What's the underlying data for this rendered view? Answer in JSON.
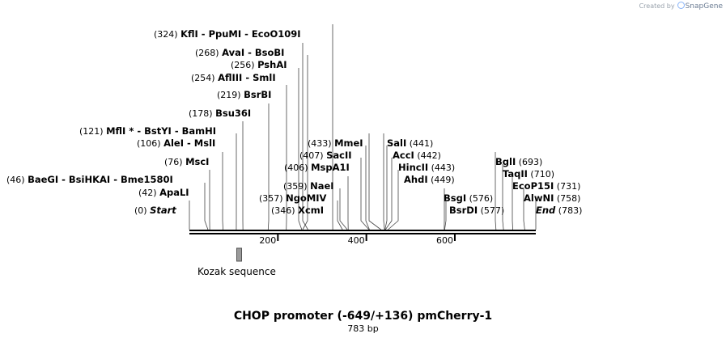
{
  "credit": {
    "prefix": "Created by",
    "brand": "SnapGene"
  },
  "map": {
    "title": "CHOP promoter (-649/+136) pmCherry-1",
    "length_label": "783 bp",
    "length_bp": 783,
    "ticks": [
      {
        "pos": 200,
        "label": "200"
      },
      {
        "pos": 400,
        "label": "400"
      },
      {
        "pos": 600,
        "label": "600"
      }
    ],
    "features": [
      {
        "name": "Kozak sequence",
        "start": 107,
        "end": 118,
        "color": "#9a9a9a"
      }
    ],
    "sites": [
      {
        "pos": "(324)",
        "bp": 324,
        "names": [
          "KflI",
          "PpuMI",
          "EcoO109I"
        ],
        "side": "left"
      },
      {
        "pos": "(268)",
        "bp": 268,
        "names": [
          "AvaI",
          "BsoBI"
        ],
        "side": "left"
      },
      {
        "pos": "(256)",
        "bp": 256,
        "names": [
          "PshAI"
        ],
        "side": "left"
      },
      {
        "pos": "(254)",
        "bp": 254,
        "names": [
          "AflIII",
          "SmlI"
        ],
        "side": "left"
      },
      {
        "pos": "(219)",
        "bp": 219,
        "names": [
          "BsrBI"
        ],
        "side": "left"
      },
      {
        "pos": "(178)",
        "bp": 178,
        "names": [
          "Bsu36I"
        ],
        "side": "left"
      },
      {
        "pos": "(121)",
        "bp": 121,
        "names": [
          "MflI *",
          "BstYI",
          "BamHI"
        ],
        "side": "left"
      },
      {
        "pos": "(106)",
        "bp": 106,
        "names": [
          "AleI",
          "MslI"
        ],
        "side": "left"
      },
      {
        "pos": "(76)",
        "bp": 76,
        "names": [
          "MscI"
        ],
        "side": "left"
      },
      {
        "pos": "(46)",
        "bp": 46,
        "names": [
          "BaeGI",
          "BsiHKAI",
          "Bme1580I"
        ],
        "side": "left"
      },
      {
        "pos": "(42)",
        "bp": 42,
        "names": [
          "ApaLI"
        ],
        "side": "left"
      },
      {
        "pos": "(0)",
        "bp": 0,
        "names": [
          "Start"
        ],
        "side": "left",
        "italic": true
      },
      {
        "pos": "(433)",
        "bp": 433,
        "names": [
          "MmeI"
        ],
        "side": "left"
      },
      {
        "pos": "(407)",
        "bp": 407,
        "names": [
          "SacII"
        ],
        "side": "left"
      },
      {
        "pos": "(406)",
        "bp": 406,
        "names": [
          "MspA1I"
        ],
        "side": "left"
      },
      {
        "pos": "(359)",
        "bp": 359,
        "names": [
          "NaeI"
        ],
        "side": "left"
      },
      {
        "pos": "(357)",
        "bp": 357,
        "names": [
          "NgoMIV"
        ],
        "side": "left"
      },
      {
        "pos": "(346)",
        "bp": 346,
        "names": [
          "XcmI"
        ],
        "side": "left"
      },
      {
        "pos": "(441)",
        "bp": 441,
        "names": [
          "SalI"
        ],
        "side": "right"
      },
      {
        "pos": "(442)",
        "bp": 442,
        "names": [
          "AccI"
        ],
        "side": "right"
      },
      {
        "pos": "(443)",
        "bp": 443,
        "names": [
          "HincII"
        ],
        "side": "right"
      },
      {
        "pos": "(449)",
        "bp": 449,
        "names": [
          "AhdI"
        ],
        "side": "right"
      },
      {
        "pos": "(576)",
        "bp": 576,
        "names": [
          "BsgI"
        ],
        "side": "right"
      },
      {
        "pos": "(577)",
        "bp": 577,
        "names": [
          "BsrDI"
        ],
        "side": "right"
      },
      {
        "pos": "(693)",
        "bp": 693,
        "names": [
          "BglI"
        ],
        "side": "right"
      },
      {
        "pos": "(710)",
        "bp": 710,
        "names": [
          "TaqII"
        ],
        "side": "right"
      },
      {
        "pos": "(731)",
        "bp": 731,
        "names": [
          "EcoP15I"
        ],
        "side": "right"
      },
      {
        "pos": "(758)",
        "bp": 758,
        "names": [
          "AlwNI"
        ],
        "side": "right"
      },
      {
        "pos": "(783)",
        "bp": 783,
        "names": [
          "End"
        ],
        "side": "right",
        "italic": true
      }
    ]
  }
}
